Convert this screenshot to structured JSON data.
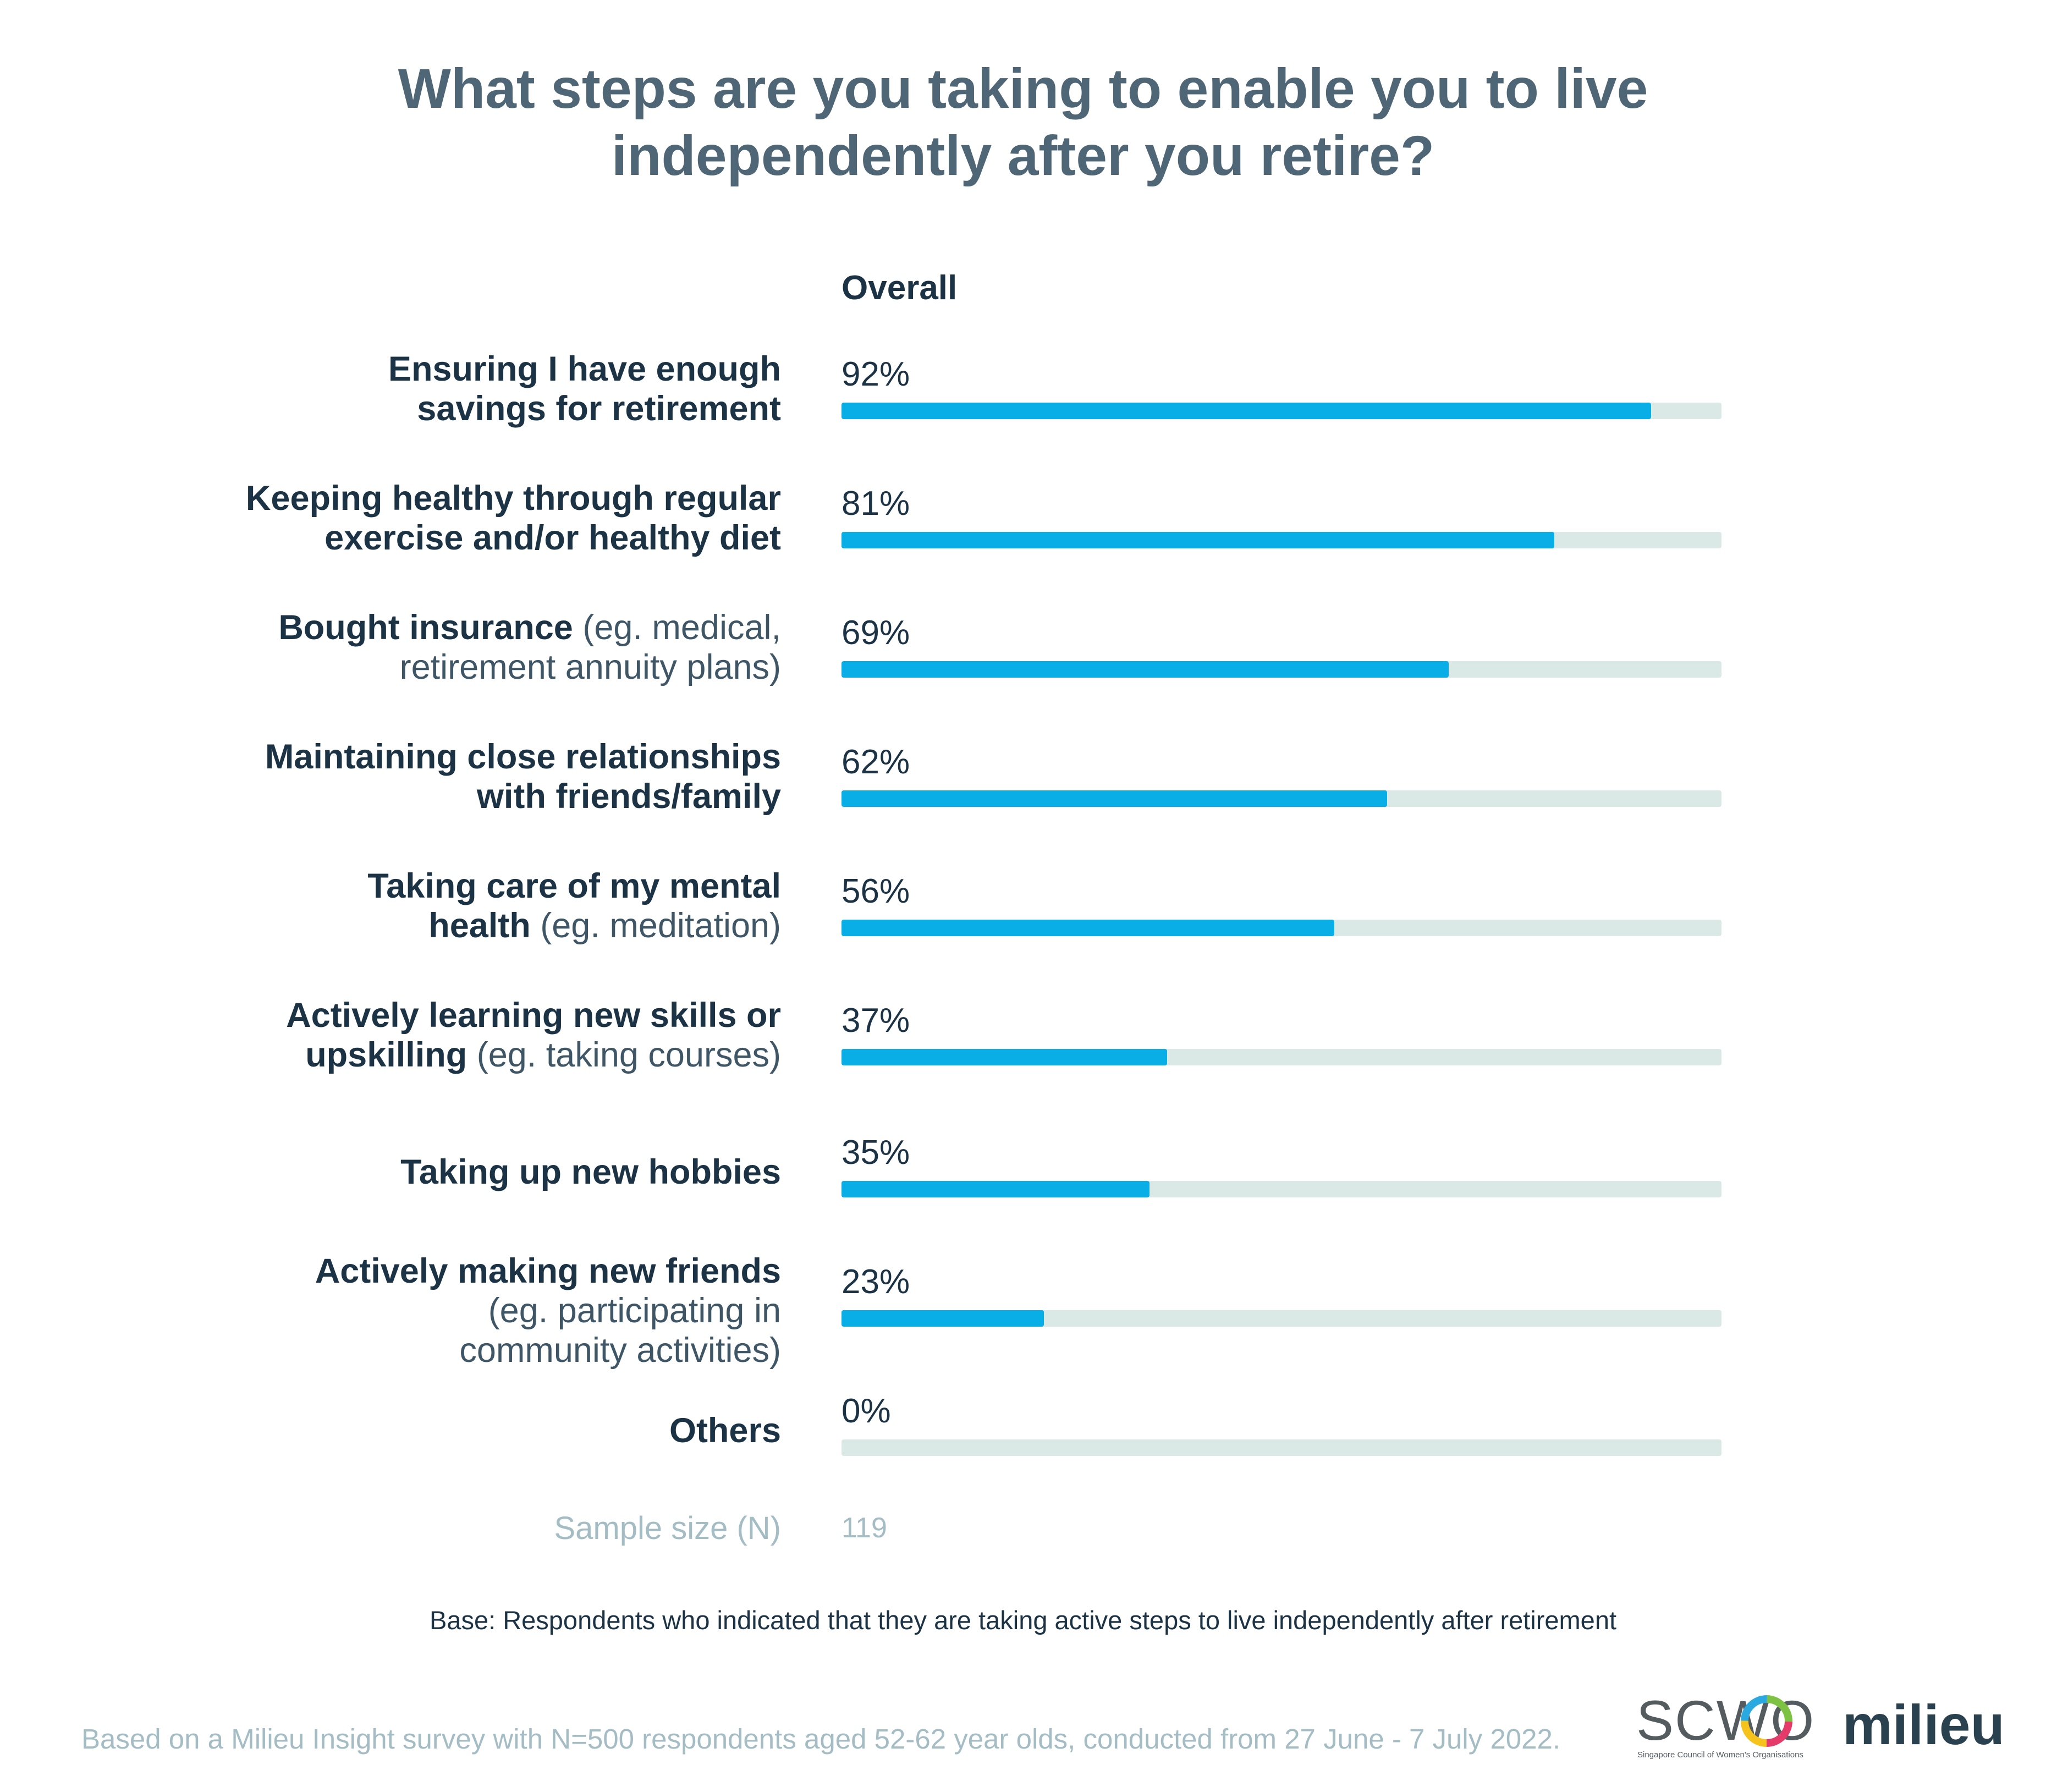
{
  "title_lines": [
    "What steps are you taking to enable you to live",
    "independently after you retire?"
  ],
  "column_header": "Overall",
  "chart_data": {
    "type": "bar",
    "orientation": "horizontal",
    "title": "What steps are you taking to enable you to live independently after you retire?",
    "series_name": "Overall",
    "value_unit": "%",
    "xlim": [
      0,
      100
    ],
    "categories": [
      "Ensuring I have enough savings for retirement",
      "Keeping healthy through regular exercise and/or healthy diet",
      "Bought insurance (eg. medical, retirement annuity plans)",
      "Maintaining close relationships with friends/family",
      "Taking care of my mental health (eg. meditation)",
      "Actively learning new skills or upskilling (eg. taking courses)",
      "Taking up new hobbies",
      "Actively making new friends (eg. participating in community activities)",
      "Others"
    ],
    "values": [
      92,
      81,
      69,
      62,
      56,
      37,
      35,
      23,
      0
    ],
    "value_labels": [
      "92%",
      "81%",
      "69%",
      "62%",
      "56%",
      "37%",
      "35%",
      "23%",
      "0%"
    ],
    "colors": {
      "bar": "#08aee5",
      "track": "#dbe9e6"
    }
  },
  "rows": [
    {
      "lines": [
        [
          {
            "t": "Ensuring I have enough",
            "b": true
          }
        ],
        [
          {
            "t": "savings for retirement",
            "b": true
          }
        ]
      ]
    },
    {
      "lines": [
        [
          {
            "t": "Keeping healthy through regular",
            "b": true
          }
        ],
        [
          {
            "t": "exercise and/or healthy diet",
            "b": true
          }
        ]
      ]
    },
    {
      "lines": [
        [
          {
            "t": "Bought insurance",
            "b": true
          },
          {
            "t": " (eg. medical,",
            "b": false
          }
        ],
        [
          {
            "t": "retirement annuity plans)",
            "b": false
          }
        ]
      ]
    },
    {
      "lines": [
        [
          {
            "t": "Maintaining close relationships",
            "b": true
          }
        ],
        [
          {
            "t": "with friends/family",
            "b": true
          }
        ]
      ]
    },
    {
      "lines": [
        [
          {
            "t": "Taking care of my mental",
            "b": true
          }
        ],
        [
          {
            "t": "health",
            "b": true
          },
          {
            "t": " (eg. meditation)",
            "b": false
          }
        ]
      ]
    },
    {
      "lines": [
        [
          {
            "t": "Actively learning new skills or",
            "b": true
          }
        ],
        [
          {
            "t": "upskilling",
            "b": true
          },
          {
            "t": " (eg. taking courses)",
            "b": false
          }
        ]
      ]
    },
    {
      "lines": [
        [
          {
            "t": "Taking up new hobbies",
            "b": true
          }
        ]
      ]
    },
    {
      "lines": [
        [
          {
            "t": "Actively making new friends",
            "b": true
          }
        ],
        [
          {
            "t": "(eg. participating in",
            "b": false
          }
        ],
        [
          {
            "t": "community activities)",
            "b": false
          }
        ]
      ]
    },
    {
      "lines": [
        [
          {
            "t": "Others",
            "b": true
          }
        ]
      ]
    }
  ],
  "sample": {
    "label": "Sample size (N)",
    "value": "119"
  },
  "base_note": "Base: Respondents who indicated that they are taking active steps to live independently after retirement",
  "footer_note": "Based on a Milieu Insight survey with N=500 respondents aged 52-62 year olds, conducted from 27 June - 7 July 2022.",
  "logos": {
    "scwo_text": "SCWO",
    "scwo_subtitle": "Singapore Council of Women's Organisations",
    "milieu_text": "milieu"
  }
}
